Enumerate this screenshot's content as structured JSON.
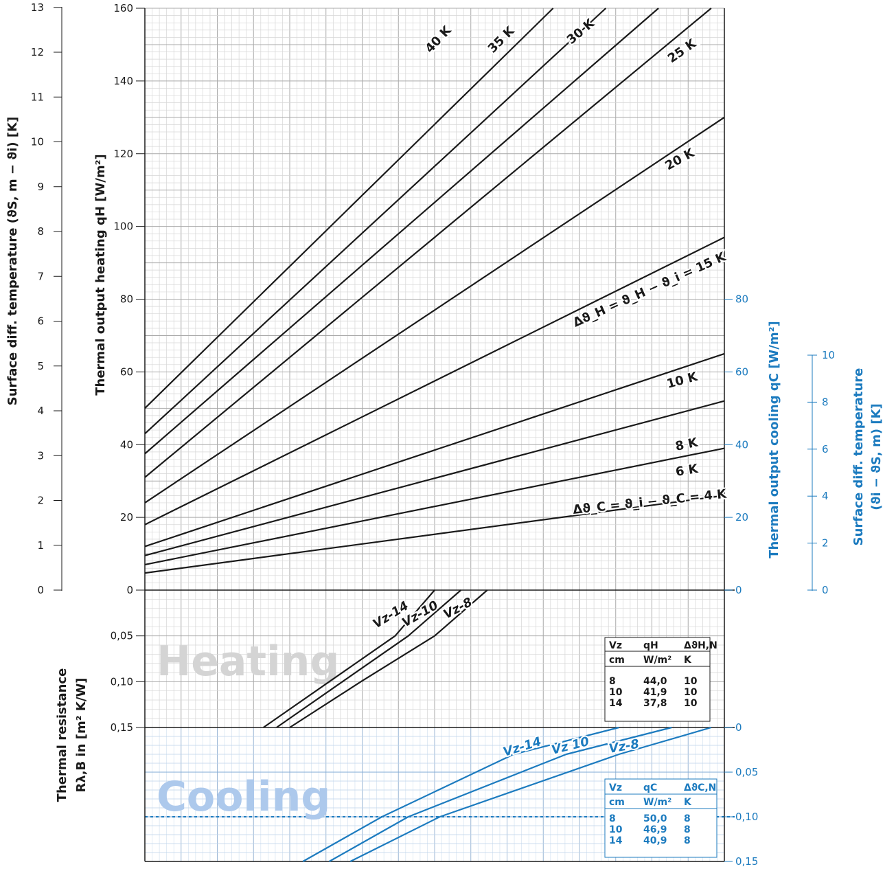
{
  "colors": {
    "heating": "#1a1a1a",
    "cooling": "#1c7bbf",
    "heating_word": "#d4d4d4",
    "cooling_word": "#adc9ec",
    "grid_major": "#a9a9a9",
    "grid_minor": "#d6d6d6"
  },
  "axes": {
    "left_outer_title": "Surface diff. temperature (ϑS, m − ϑi) [K]",
    "left_outer_ticks": [
      "0",
      "1",
      "2",
      "3",
      "4",
      "5",
      "6",
      "7",
      "8",
      "9",
      "10",
      "11",
      "12",
      "13"
    ],
    "left_inner_title": "Thermal output heating qH [W/m²]",
    "left_inner_ticks": [
      "0",
      "20",
      "40",
      "60",
      "80",
      "100",
      "120",
      "140",
      "160"
    ],
    "right_inner_title": "Thermal output cooling qC [W/m²]",
    "right_inner_ticks": [
      "0",
      "20",
      "40",
      "60",
      "80"
    ],
    "right_outer_title_line1": "Surface diff. temperature",
    "right_outer_title_line2": "(ϑi − ϑS, m) [K]",
    "right_outer_ticks": [
      "0",
      "2",
      "4",
      "6",
      "8",
      "10"
    ],
    "resistance_title_line1": "Thermal resistance",
    "resistance_title_line2": "Rλ,B in [m² K/W]",
    "resistance_ticks_heating": [
      "0",
      "0,05",
      "0,10",
      "0,15"
    ],
    "resistance_ticks_cooling": [
      "0",
      "0,05",
      "0,10",
      "0,15"
    ]
  },
  "section_words": {
    "heating": "Heating",
    "cooling": "Cooling"
  },
  "chart_data": {
    "type": "line",
    "upper_panel": {
      "xlabel": "",
      "ylabel": "Thermal output heating qH [W/m²]",
      "ylim": [
        0,
        160
      ],
      "series": [
        {
          "name": "40 K",
          "values": [
            [
              0,
              50
            ],
            [
              0.155,
              160
            ]
          ]
        },
        {
          "name": "35 K",
          "values": [
            [
              0,
              43
            ],
            [
              0.175,
              160
            ]
          ]
        },
        {
          "name": "30 K",
          "values": [
            [
              0,
              37.5
            ],
            [
              0.195,
              160
            ]
          ]
        },
        {
          "name": "25 K",
          "values": [
            [
              0,
              31
            ],
            [
              0.215,
              160
            ]
          ]
        },
        {
          "name": "20 K",
          "values": [
            [
              0,
              24
            ],
            [
              0.22,
              130
            ]
          ]
        },
        {
          "name": "Δϑ_H = ϑ_H − ϑ_i = 15 K",
          "values": [
            [
              0,
              18
            ],
            [
              0.22,
              97
            ]
          ]
        },
        {
          "name": "10 K",
          "values": [
            [
              0,
              12
            ],
            [
              0.22,
              65
            ]
          ]
        },
        {
          "name": "8 K",
          "values": [
            [
              0,
              9.5
            ],
            [
              0.22,
              52
            ]
          ]
        },
        {
          "name": "6 K",
          "values": [
            [
              0,
              7
            ],
            [
              0.22,
              39
            ]
          ]
        },
        {
          "name": "Δϑ_C = ϑ_i − ϑ_C = 4 K",
          "values": [
            [
              0,
              4.7
            ],
            [
              0.22,
              26
            ]
          ]
        }
      ]
    },
    "heating_panel": {
      "ylim": [
        0,
        0.15
      ],
      "series": [
        {
          "name": "Vz-14",
          "values": [
            [
              0.045,
              0.15
            ],
            [
              0.07,
              0.1
            ],
            [
              0.095,
              0.05
            ],
            [
              0.11,
              0
            ]
          ]
        },
        {
          "name": "Vz-10",
          "values": [
            [
              0.05,
              0.15
            ],
            [
              0.075,
              0.1
            ],
            [
              0.1,
              0.05
            ],
            [
              0.12,
              0
            ]
          ]
        },
        {
          "name": "Vz-8",
          "values": [
            [
              0.055,
              0.15
            ],
            [
              0.082,
              0.1
            ],
            [
              0.11,
              0.05
            ],
            [
              0.13,
              0
            ]
          ]
        }
      ]
    },
    "cooling_panel": {
      "ylim": [
        0,
        0.15
      ],
      "series": [
        {
          "name": "Vz-14",
          "values": [
            [
              0.06,
              0.15
            ],
            [
              0.09,
              0.1
            ],
            [
              0.14,
              0.03
            ],
            [
              0.18,
              0
            ]
          ]
        },
        {
          "name": "Vz 10",
          "values": [
            [
              0.07,
              0.15
            ],
            [
              0.1,
              0.1
            ],
            [
              0.16,
              0.03
            ],
            [
              0.2,
              0
            ]
          ]
        },
        {
          "name": "Vz-8",
          "values": [
            [
              0.078,
              0.15
            ],
            [
              0.112,
              0.1
            ],
            [
              0.18,
              0.03
            ],
            [
              0.215,
              0
            ]
          ]
        }
      ],
      "reference_line": 0.1
    }
  },
  "heating_table": {
    "headers": [
      "Vz",
      "qH",
      "ΔϑH,N"
    ],
    "units": [
      "cm",
      "W/m²",
      "K"
    ],
    "rows": [
      [
        "8",
        "44,0",
        "10"
      ],
      [
        "10",
        "41,9",
        "10"
      ],
      [
        "14",
        "37,8",
        "10"
      ]
    ]
  },
  "cooling_table": {
    "headers": [
      "Vz",
      "qC",
      "ΔϑC,N"
    ],
    "units": [
      "cm",
      "W/m²",
      "K"
    ],
    "rows": [
      [
        "8",
        "50,0",
        "8"
      ],
      [
        "10",
        "46,9",
        "8"
      ],
      [
        "14",
        "40,9",
        "8"
      ]
    ]
  }
}
